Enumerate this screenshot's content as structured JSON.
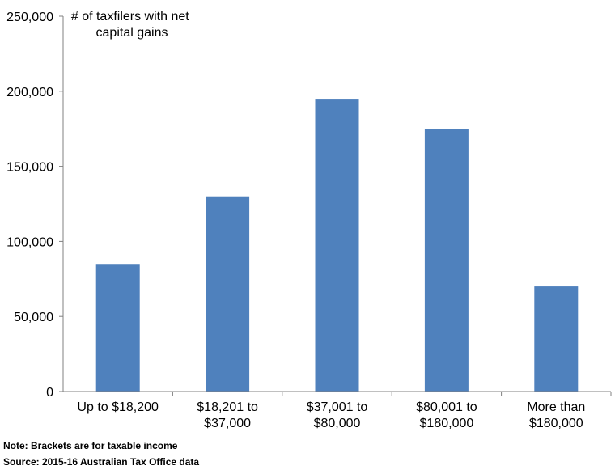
{
  "chart_data": {
    "type": "bar",
    "categories": [
      [
        "Up to $18,200"
      ],
      [
        "$18,201 to",
        "$37,000"
      ],
      [
        "$37,001 to",
        "$80,000"
      ],
      [
        "$80,001 to",
        "$180,000"
      ],
      [
        "More than",
        "$180,000"
      ]
    ],
    "values": [
      85000,
      130000,
      195000,
      175000,
      70000
    ],
    "ylabel": [
      "# of taxfilers with net",
      "capital gains"
    ],
    "ylim": [
      0,
      250000
    ],
    "yticks": [
      0,
      50000,
      100000,
      150000,
      200000,
      250000
    ],
    "ytick_labels": [
      "0",
      "50,000",
      "100,000",
      "150,000",
      "200,000",
      "250,000"
    ],
    "bar_color": "#4f81bd",
    "grid": false
  },
  "notes": {
    "note": "Note: Brackets are for taxable income",
    "source": "Source: 2015-16 Australian Tax Office data"
  }
}
